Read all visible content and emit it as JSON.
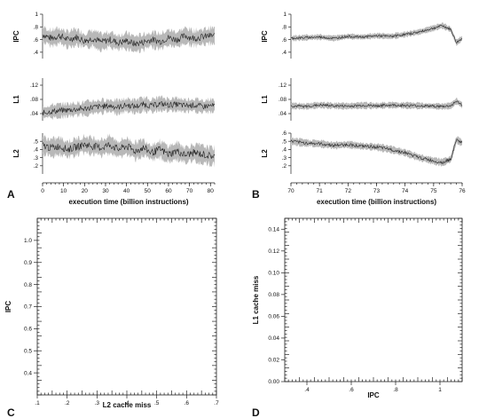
{
  "chart_data": [
    {
      "id": "A",
      "type": "line",
      "panel_letter": "A",
      "xlabel": "execution time (billion instructions)",
      "xlim": [
        0,
        82
      ],
      "xticks": [
        0,
        10,
        20,
        30,
        40,
        50,
        60,
        70,
        80
      ],
      "grid": false,
      "series": [
        {
          "name": "IPC",
          "ylabel": "IPC",
          "ylim": [
            0.3,
            1.0
          ],
          "yticks": [
            0.4,
            0.6,
            0.8,
            1.0
          ],
          "x": [
            0,
            4,
            8,
            12,
            16,
            20,
            24,
            28,
            32,
            36,
            40,
            44,
            48,
            52,
            56,
            60,
            64,
            68,
            72,
            76,
            80
          ],
          "y": [
            0.68,
            0.62,
            0.66,
            0.6,
            0.64,
            0.58,
            0.62,
            0.56,
            0.6,
            0.55,
            0.58,
            0.53,
            0.56,
            0.6,
            0.57,
            0.63,
            0.6,
            0.66,
            0.62,
            0.64,
            0.66
          ],
          "band": 0.12
        },
        {
          "name": "L1",
          "ylabel": "L1",
          "ylim": [
            0.02,
            0.14
          ],
          "yticks": [
            0.04,
            0.08,
            0.12
          ],
          "x": [
            0,
            4,
            8,
            12,
            16,
            20,
            24,
            28,
            32,
            36,
            40,
            44,
            48,
            52,
            56,
            60,
            64,
            68,
            72,
            76,
            80
          ],
          "y": [
            0.042,
            0.046,
            0.048,
            0.05,
            0.052,
            0.054,
            0.058,
            0.06,
            0.062,
            0.058,
            0.064,
            0.06,
            0.066,
            0.062,
            0.068,
            0.064,
            0.066,
            0.062,
            0.064,
            0.06,
            0.062
          ],
          "band": 0.018
        },
        {
          "name": "L2",
          "ylabel": "L2",
          "ylim": [
            0.1,
            0.6
          ],
          "yticks": [
            0.2,
            0.3,
            0.4,
            0.5
          ],
          "x": [
            0,
            4,
            8,
            12,
            16,
            20,
            24,
            28,
            32,
            36,
            40,
            44,
            48,
            52,
            56,
            60,
            64,
            68,
            72,
            76,
            80
          ],
          "y": [
            0.45,
            0.42,
            0.44,
            0.4,
            0.43,
            0.46,
            0.44,
            0.42,
            0.46,
            0.4,
            0.44,
            0.38,
            0.42,
            0.36,
            0.4,
            0.34,
            0.38,
            0.33,
            0.36,
            0.34,
            0.32
          ],
          "band": 0.1
        }
      ]
    },
    {
      "id": "B",
      "type": "line",
      "panel_letter": "B",
      "xlabel": "execution time (billion instructions)",
      "xlim": [
        70,
        76
      ],
      "xticks": [
        70,
        71,
        72,
        73,
        74,
        75,
        76
      ],
      "grid": false,
      "series": [
        {
          "name": "IPC",
          "ylabel": "IPC",
          "ylim": [
            0.3,
            1.0
          ],
          "yticks": [
            0.4,
            0.6,
            0.8,
            1.0
          ],
          "x": [
            70,
            70.5,
            71,
            71.5,
            72,
            72.5,
            73,
            73.5,
            74,
            74.5,
            75,
            75.3,
            75.6,
            75.8,
            76
          ],
          "y": [
            0.62,
            0.63,
            0.64,
            0.62,
            0.65,
            0.64,
            0.66,
            0.65,
            0.68,
            0.72,
            0.78,
            0.82,
            0.76,
            0.55,
            0.62
          ],
          "band": 0.04
        },
        {
          "name": "L1",
          "ylabel": "L1",
          "ylim": [
            0.02,
            0.14
          ],
          "yticks": [
            0.04,
            0.08,
            0.12
          ],
          "x": [
            70,
            70.5,
            71,
            71.5,
            72,
            72.5,
            73,
            73.5,
            74,
            74.5,
            75,
            75.3,
            75.6,
            75.8,
            76
          ],
          "y": [
            0.062,
            0.06,
            0.064,
            0.062,
            0.061,
            0.063,
            0.062,
            0.064,
            0.063,
            0.062,
            0.061,
            0.06,
            0.062,
            0.075,
            0.064
          ],
          "band": 0.008
        },
        {
          "name": "L2",
          "ylabel": "L2",
          "ylim": [
            0.1,
            0.6
          ],
          "yticks": [
            0.2,
            0.3,
            0.4,
            0.5,
            0.6
          ],
          "x": [
            70,
            70.5,
            71,
            71.5,
            72,
            72.5,
            73,
            73.5,
            74,
            74.5,
            75,
            75.3,
            75.6,
            75.8,
            76
          ],
          "y": [
            0.5,
            0.48,
            0.47,
            0.45,
            0.46,
            0.44,
            0.43,
            0.4,
            0.36,
            0.3,
            0.26,
            0.24,
            0.28,
            0.52,
            0.48
          ],
          "band": 0.04
        }
      ]
    },
    {
      "id": "C",
      "type": "scatter",
      "panel_letter": "C",
      "xlabel": "L2 cache miss",
      "ylabel": "IPC",
      "xlim": [
        0.1,
        0.7
      ],
      "ylim": [
        0.3,
        1.1
      ],
      "xticks": [
        0.1,
        0.2,
        0.3,
        0.4,
        0.5,
        0.6,
        0.7
      ],
      "yticks": [
        0.4,
        0.5,
        0.6,
        0.7,
        0.8,
        0.9,
        1.0
      ],
      "grid": false,
      "points": []
    },
    {
      "id": "D",
      "type": "scatter",
      "panel_letter": "D",
      "xlabel": "IPC",
      "ylabel": "L1 cache miss",
      "xlim": [
        0.3,
        1.1
      ],
      "ylim": [
        0.0,
        0.15
      ],
      "xticks": [
        0.4,
        0.6,
        0.8,
        1.0
      ],
      "yticks": [
        0.0,
        0.02,
        0.04,
        0.06,
        0.08,
        0.1,
        0.12,
        0.14
      ],
      "grid": false,
      "points": []
    }
  ]
}
